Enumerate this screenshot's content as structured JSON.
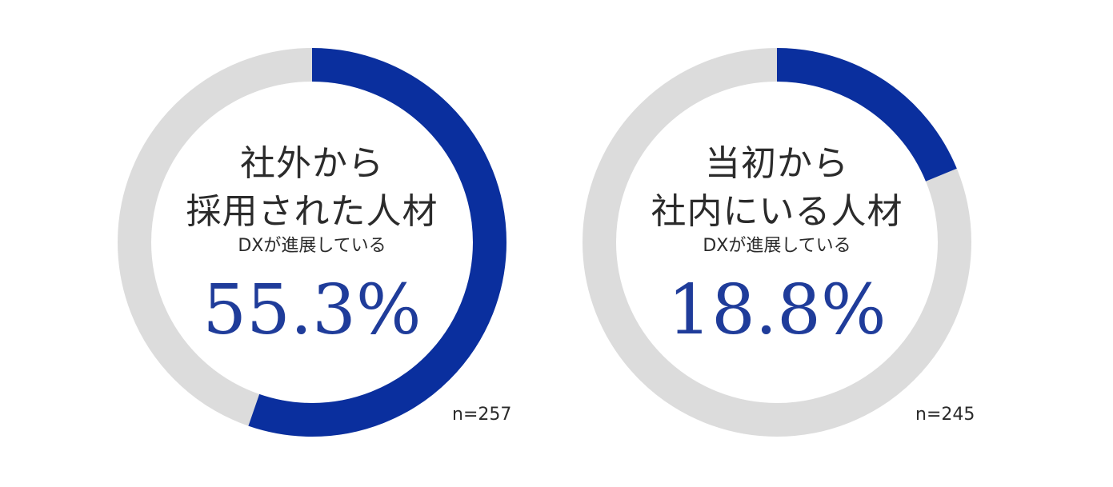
{
  "chart_data": [
    {
      "type": "pie",
      "title_lines": [
        "社外から",
        "採用された人材"
      ],
      "subtitle": "DXが進展している",
      "value_label": "55.3%",
      "value": 55.3,
      "max": 100,
      "n_label": "n=257",
      "colors": {
        "value": "#0a2f9e",
        "rest": "#dcdcdc"
      }
    },
    {
      "type": "pie",
      "title_lines": [
        "当初から",
        "社内にいる人材"
      ],
      "subtitle": "DXが進展している",
      "value_label": "18.8%",
      "value": 18.8,
      "max": 100,
      "n_label": "n=245",
      "colors": {
        "value": "#0a2f9e",
        "rest": "#dcdcdc"
      }
    }
  ]
}
